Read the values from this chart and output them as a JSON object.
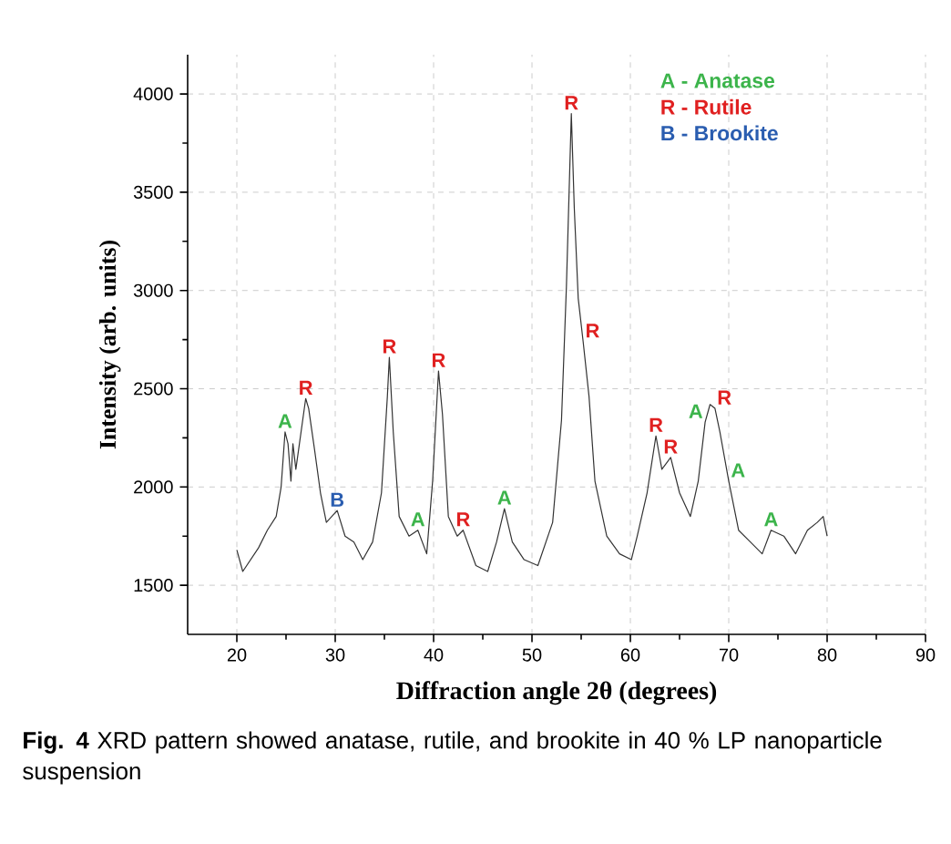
{
  "chart_data": {
    "type": "line",
    "xlabel": "Diffraction angle 2θ (degrees)",
    "ylabel": "Intensity (arb. units)",
    "xlim": [
      15,
      90
    ],
    "ylim": [
      1250,
      4200
    ],
    "xticks": [
      20,
      30,
      40,
      50,
      60,
      70,
      80,
      90
    ],
    "yticks": [
      1500,
      2000,
      2500,
      3000,
      3500,
      4000
    ],
    "grid": true,
    "series": [
      {
        "color": "#333333",
        "x": [
          20,
          20.6,
          22.2,
          23.1,
          24.0,
          24.5,
          24.9,
          25.2,
          25.5,
          25.7,
          26.0,
          27.0,
          27.3,
          27.9,
          28.5,
          29.1,
          30.2,
          31.0,
          31.9,
          32.8,
          33.8,
          34.7,
          35.3,
          35.5,
          35.9,
          36.5,
          37.5,
          38.4,
          39.3,
          39.9,
          40.5,
          40.9,
          41.5,
          42.4,
          43.0,
          44.3,
          45.5,
          46.4,
          47.2,
          48.0,
          49.2,
          50.6,
          52.1,
          53.0,
          53.5,
          54.0,
          54.3,
          54.7,
          55.2,
          55.8,
          56.4,
          57.6,
          58.9,
          60.1,
          60.7,
          61.7,
          62.6,
          63.2,
          64.1,
          65.0,
          66.1,
          66.9,
          67.6,
          68.1,
          68.6,
          69.1,
          70.0,
          71.0,
          72.2,
          73.4,
          74.3,
          75.6,
          76.8,
          78.0,
          79.0,
          79.6,
          80.0
        ],
        "values": [
          1680,
          1570,
          1690,
          1780,
          1850,
          2000,
          2280,
          2220,
          2030,
          2220,
          2090,
          2450,
          2400,
          2190,
          1970,
          1820,
          1880,
          1750,
          1720,
          1630,
          1720,
          1970,
          2460,
          2660,
          2280,
          1850,
          1750,
          1780,
          1660,
          2030,
          2590,
          2370,
          1850,
          1750,
          1780,
          1600,
          1570,
          1720,
          1890,
          1720,
          1630,
          1600,
          1820,
          2340,
          3020,
          3900,
          3420,
          2960,
          2740,
          2460,
          2030,
          1750,
          1660,
          1630,
          1750,
          1970,
          2260,
          2090,
          2150,
          1970,
          1850,
          2030,
          2330,
          2420,
          2400,
          2280,
          2030,
          1780,
          1720,
          1660,
          1780,
          1750,
          1660,
          1780,
          1820,
          1850,
          1750
        ]
      }
    ],
    "annotations": [
      "A - Anatase",
      "R - Rutile",
      "B - Brookite",
      {
        "text": "A",
        "x": 24.9,
        "y": 2280
      },
      {
        "text": "R",
        "x": 27.0,
        "y": 2450
      },
      {
        "text": "B",
        "x": 30.2,
        "y": 1880
      },
      {
        "text": "R",
        "x": 35.5,
        "y": 2660
      },
      {
        "text": "A",
        "x": 38.4,
        "y": 1780
      },
      {
        "text": "R",
        "x": 40.5,
        "y": 2590
      },
      {
        "text": "R",
        "x": 43.0,
        "y": 1780
      },
      {
        "text": "A",
        "x": 47.2,
        "y": 1890
      },
      {
        "text": "R",
        "x": 54.0,
        "y": 3900
      },
      {
        "text": "R",
        "x": 55.2,
        "y": 2740
      },
      {
        "text": "R",
        "x": 62.6,
        "y": 2260
      },
      {
        "text": "R",
        "x": 64.1,
        "y": 2150
      },
      {
        "text": "A",
        "x": 67.6,
        "y": 2330
      },
      {
        "text": "R",
        "x": 68.6,
        "y": 2400
      },
      {
        "text": "A",
        "x": 70.0,
        "y": 2030
      },
      {
        "text": "A",
        "x": 74.3,
        "y": 1780
      },
      "**Fig. 4** XRD pattern showed anatase, rutile, and brookite in 40 % LP nanoparticle suspension"
    ]
  }
}
